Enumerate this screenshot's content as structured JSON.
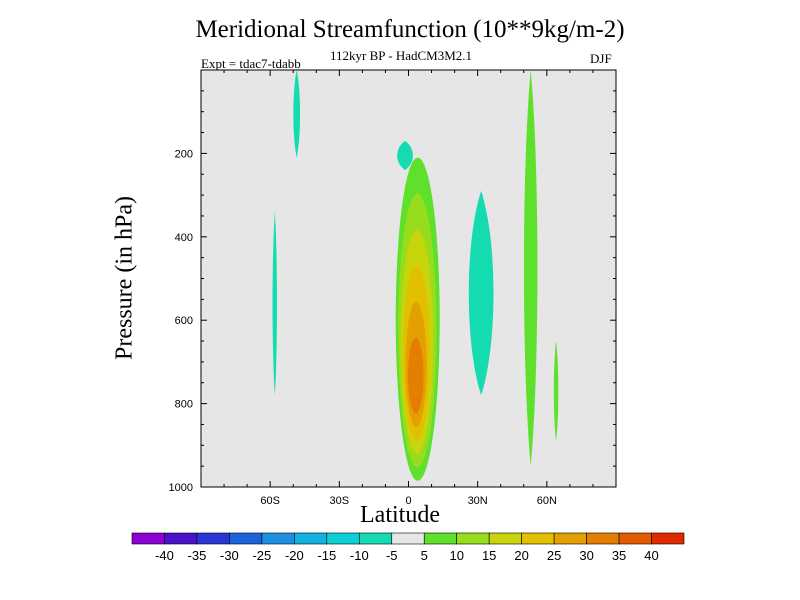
{
  "chart_data": {
    "type": "heatmap",
    "title": "Meridional Streamfunction (10**9kg/m-2)",
    "subtitle": "112kyr BP - HadCM3M2.1",
    "experiment": "Expt = tdac7-tdabb",
    "season": "DJF",
    "xlabel": "Latitude",
    "ylabel": "Pressure (in hPa)",
    "xlim": [
      -90,
      90
    ],
    "ylim": [
      1000,
      0
    ],
    "x_ticks": [
      {
        "value": -60,
        "label": "60S"
      },
      {
        "value": -30,
        "label": "30S"
      },
      {
        "value": 0,
        "label": "0"
      },
      {
        "value": 30,
        "label": "30N"
      },
      {
        "value": 60,
        "label": "60N"
      }
    ],
    "y_ticks": [
      {
        "value": 200,
        "label": "200"
      },
      {
        "value": 400,
        "label": "400"
      },
      {
        "value": 600,
        "label": "600"
      },
      {
        "value": 800,
        "label": "800"
      },
      {
        "value": 1000,
        "label": "1000"
      }
    ],
    "colorbar": {
      "labels": [
        "-40",
        "-35",
        "-30",
        "-25",
        "-20",
        "-15",
        "-10",
        "-5",
        "5",
        "10",
        "15",
        "20",
        "25",
        "30",
        "35",
        "40"
      ],
      "colors": [
        "#8c00d4",
        "#4b12cc",
        "#2a35d6",
        "#1c63db",
        "#1e8fe0",
        "#14b2e0",
        "#0dcfd6",
        "#14dcb0",
        "#e6e6e6",
        "#5ee02c",
        "#98dc1e",
        "#c8d40c",
        "#e2c000",
        "#e4a000",
        "#e47e00",
        "#e45a00",
        "#e22a00"
      ]
    },
    "features": [
      {
        "name": "nh-subtropical-cell",
        "lat_center": 4,
        "p_top": 210,
        "p_bottom": 985,
        "peak_value": 32,
        "peak_lat": 3,
        "peak_p": 760
      },
      {
        "name": "sh-upper-negative",
        "lat_range": [
          -50,
          -47
        ],
        "p_range": [
          0,
          210
        ],
        "value": -7
      },
      {
        "name": "sh-midlat-negative",
        "lat_range": [
          -59,
          -57
        ],
        "p_range": [
          340,
          780
        ],
        "value": -7
      },
      {
        "name": "tropical-upper-negative",
        "lat_range": [
          -5,
          2
        ],
        "p_range": [
          170,
          240
        ],
        "value": -7
      },
      {
        "name": "nh-midlat-negative",
        "lat_range": [
          26,
          37
        ],
        "p_range": [
          290,
          780
        ],
        "value": -7
      },
      {
        "name": "nh-polar-positive",
        "lat_range": [
          50,
          56
        ],
        "p_range": [
          0,
          950
        ],
        "value": 7
      },
      {
        "name": "nh-highlat-positive",
        "lat_range": [
          63,
          65
        ],
        "p_range": [
          650,
          890
        ],
        "value": 7
      }
    ]
  }
}
